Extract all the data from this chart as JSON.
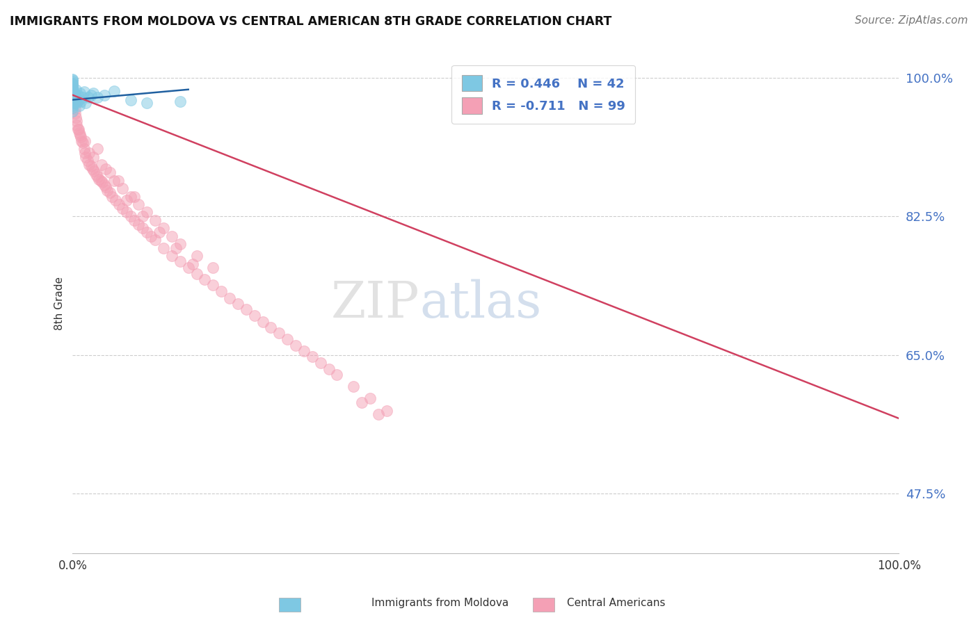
{
  "title": "IMMIGRANTS FROM MOLDOVA VS CENTRAL AMERICAN 8TH GRADE CORRELATION CHART",
  "source": "Source: ZipAtlas.com",
  "ylabel": "8th Grade",
  "color_moldova": "#7ec8e3",
  "color_central": "#f4a0b5",
  "color_trendline_moldova": "#2060a0",
  "color_trendline_central": "#d04060",
  "watermark_zip": "ZIP",
  "watermark_atlas": "atlas",
  "background_color": "#ffffff",
  "moldova_x": [
    0.0,
    0.0,
    0.0,
    0.0,
    0.0,
    0.0,
    0.0,
    0.0,
    0.0,
    0.0,
    0.0,
    0.0,
    0.0,
    0.0,
    0.0,
    0.0,
    0.0,
    0.0,
    0.0,
    0.0,
    0.002,
    0.003,
    0.004,
    0.004,
    0.005,
    0.006,
    0.007,
    0.008,
    0.009,
    0.01,
    0.012,
    0.014,
    0.016,
    0.019,
    0.022,
    0.025,
    0.03,
    0.038,
    0.05,
    0.07,
    0.09,
    0.13
  ],
  "moldova_y": [
    0.99,
    0.992,
    0.985,
    0.988,
    0.995,
    0.997,
    0.998,
    0.993,
    0.987,
    0.982,
    0.979,
    0.975,
    0.97,
    0.965,
    0.972,
    0.968,
    0.974,
    0.98,
    0.962,
    0.958,
    0.98,
    0.975,
    0.97,
    0.985,
    0.968,
    0.978,
    0.972,
    0.965,
    0.98,
    0.97,
    0.975,
    0.982,
    0.968,
    0.975,
    0.978,
    0.98,
    0.975,
    0.978,
    0.983,
    0.972,
    0.968,
    0.97
  ],
  "moldova_trend_x0": 0.0,
  "moldova_trend_y0": 0.972,
  "moldova_trend_x1": 0.14,
  "moldova_trend_y1": 0.985,
  "central_x": [
    0.0,
    0.0,
    0.0,
    0.001,
    0.001,
    0.002,
    0.003,
    0.003,
    0.004,
    0.005,
    0.005,
    0.006,
    0.007,
    0.008,
    0.009,
    0.01,
    0.011,
    0.012,
    0.014,
    0.015,
    0.016,
    0.018,
    0.02,
    0.022,
    0.024,
    0.026,
    0.028,
    0.03,
    0.032,
    0.034,
    0.036,
    0.038,
    0.04,
    0.042,
    0.045,
    0.048,
    0.052,
    0.056,
    0.06,
    0.065,
    0.07,
    0.075,
    0.08,
    0.085,
    0.09,
    0.095,
    0.1,
    0.11,
    0.12,
    0.13,
    0.14,
    0.15,
    0.16,
    0.17,
    0.18,
    0.19,
    0.2,
    0.21,
    0.22,
    0.23,
    0.24,
    0.25,
    0.26,
    0.27,
    0.28,
    0.29,
    0.3,
    0.31,
    0.32,
    0.34,
    0.36,
    0.38,
    0.03,
    0.045,
    0.06,
    0.08,
    0.1,
    0.12,
    0.05,
    0.07,
    0.09,
    0.11,
    0.025,
    0.035,
    0.055,
    0.075,
    0.13,
    0.15,
    0.17,
    0.015,
    0.02,
    0.04,
    0.065,
    0.085,
    0.105,
    0.125,
    0.145,
    0.35,
    0.37
  ],
  "central_y": [
    0.975,
    0.985,
    0.992,
    0.98,
    0.972,
    0.968,
    0.96,
    0.955,
    0.95,
    0.945,
    0.94,
    0.935,
    0.935,
    0.93,
    0.928,
    0.925,
    0.92,
    0.918,
    0.91,
    0.905,
    0.9,
    0.895,
    0.89,
    0.888,
    0.885,
    0.882,
    0.878,
    0.875,
    0.872,
    0.87,
    0.868,
    0.865,
    0.862,
    0.858,
    0.855,
    0.85,
    0.845,
    0.84,
    0.835,
    0.83,
    0.825,
    0.82,
    0.815,
    0.81,
    0.805,
    0.8,
    0.795,
    0.785,
    0.775,
    0.768,
    0.76,
    0.752,
    0.745,
    0.738,
    0.73,
    0.722,
    0.715,
    0.708,
    0.7,
    0.692,
    0.685,
    0.678,
    0.67,
    0.662,
    0.655,
    0.648,
    0.64,
    0.632,
    0.625,
    0.61,
    0.595,
    0.58,
    0.91,
    0.88,
    0.86,
    0.84,
    0.82,
    0.8,
    0.87,
    0.85,
    0.83,
    0.81,
    0.9,
    0.89,
    0.87,
    0.85,
    0.79,
    0.775,
    0.76,
    0.92,
    0.905,
    0.885,
    0.845,
    0.825,
    0.805,
    0.785,
    0.765,
    0.59,
    0.575
  ],
  "central_trend_x0": 0.0,
  "central_trend_y0": 0.978,
  "central_trend_x1": 1.0,
  "central_trend_y1": 0.57,
  "ytick_positions": [
    0.475,
    0.65,
    0.825,
    1.0
  ],
  "ytick_labels": [
    "47.5%",
    "65.0%",
    "82.5%",
    "100.0%"
  ],
  "xlim": [
    0.0,
    1.0
  ],
  "ylim": [
    0.4,
    1.03
  ]
}
